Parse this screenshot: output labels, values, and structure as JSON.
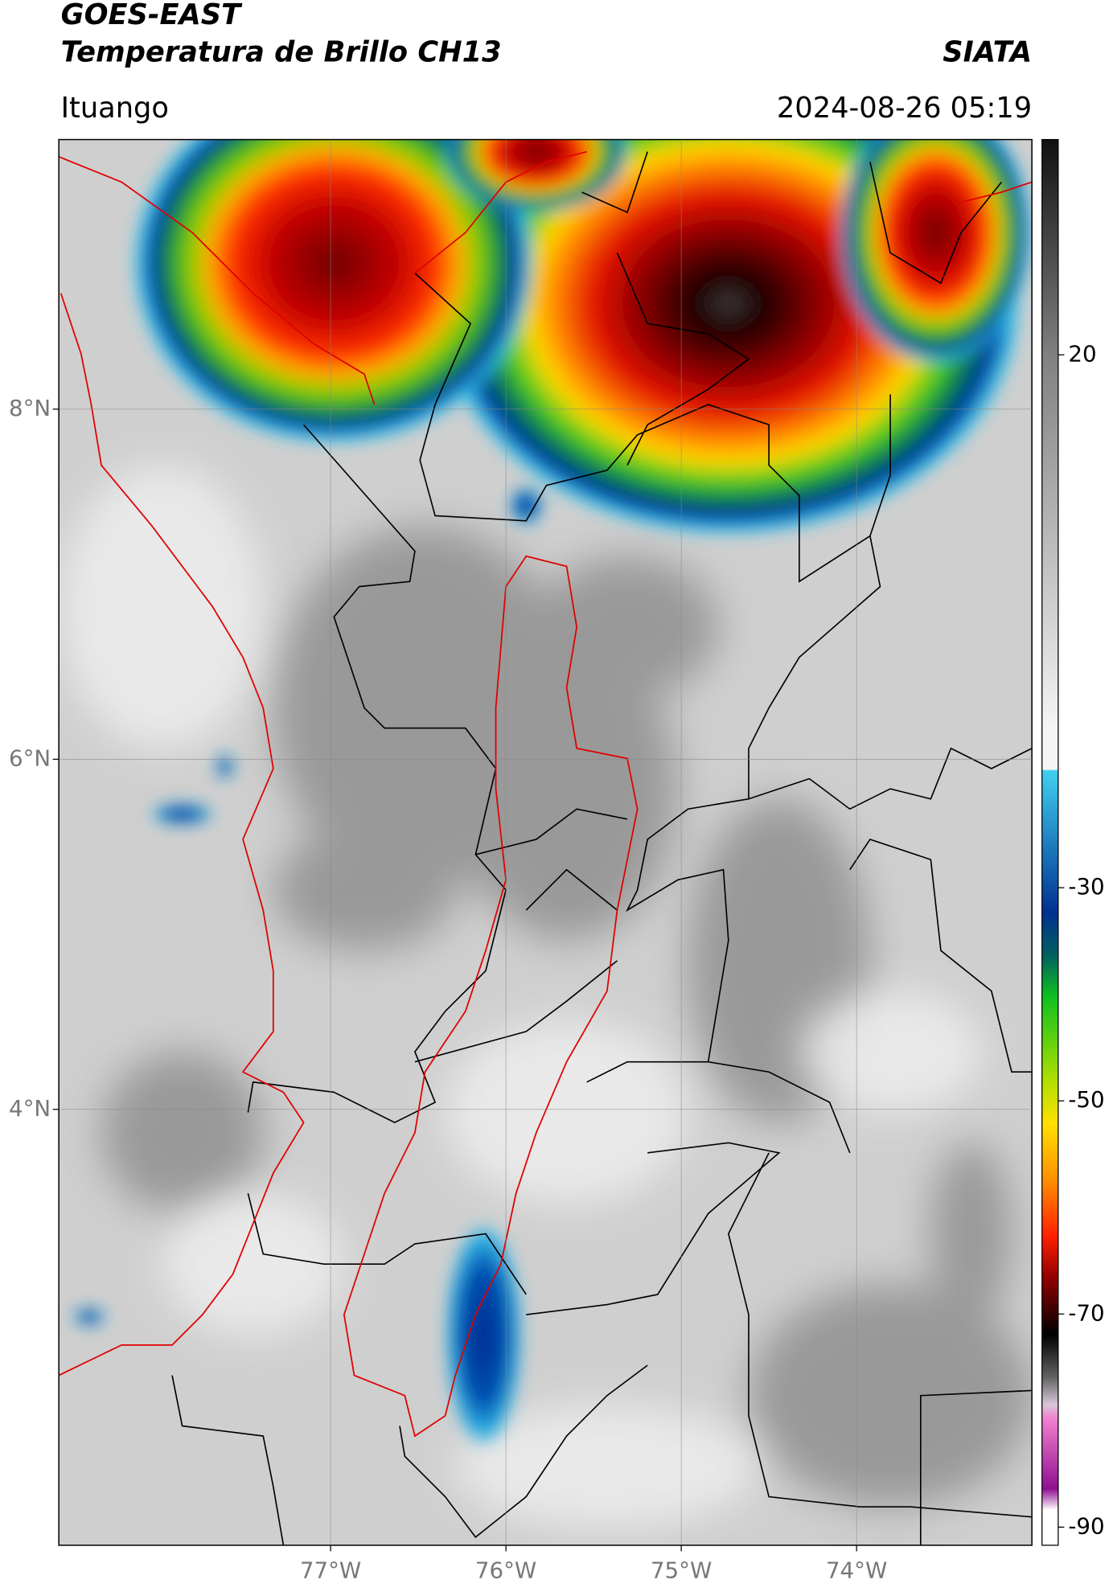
{
  "header": {
    "title_line1": "GOES-EAST",
    "title_line2": "Temperatura de Brillo CH13",
    "brand": "SIATA",
    "location": "Ituango",
    "datetime": "2024-08-26 05:19"
  },
  "map": {
    "xlim": [
      -78.55,
      -73.0
    ],
    "ylim": [
      1.51,
      9.54
    ],
    "xticks": [
      {
        "value": -77,
        "label": "77°W"
      },
      {
        "value": -76,
        "label": "76°W"
      },
      {
        "value": -75,
        "label": "75°W"
      },
      {
        "value": -74,
        "label": "74°W"
      }
    ],
    "yticks": [
      {
        "value": 8,
        "label": "8°N"
      },
      {
        "value": 6,
        "label": "6°N"
      },
      {
        "value": 4,
        "label": "4°N"
      }
    ],
    "grid": true
  },
  "colorbar": {
    "lim": [
      -91.7,
      40.2
    ],
    "ticks": [
      20,
      -30,
      -50,
      -70,
      -90
    ]
  }
}
